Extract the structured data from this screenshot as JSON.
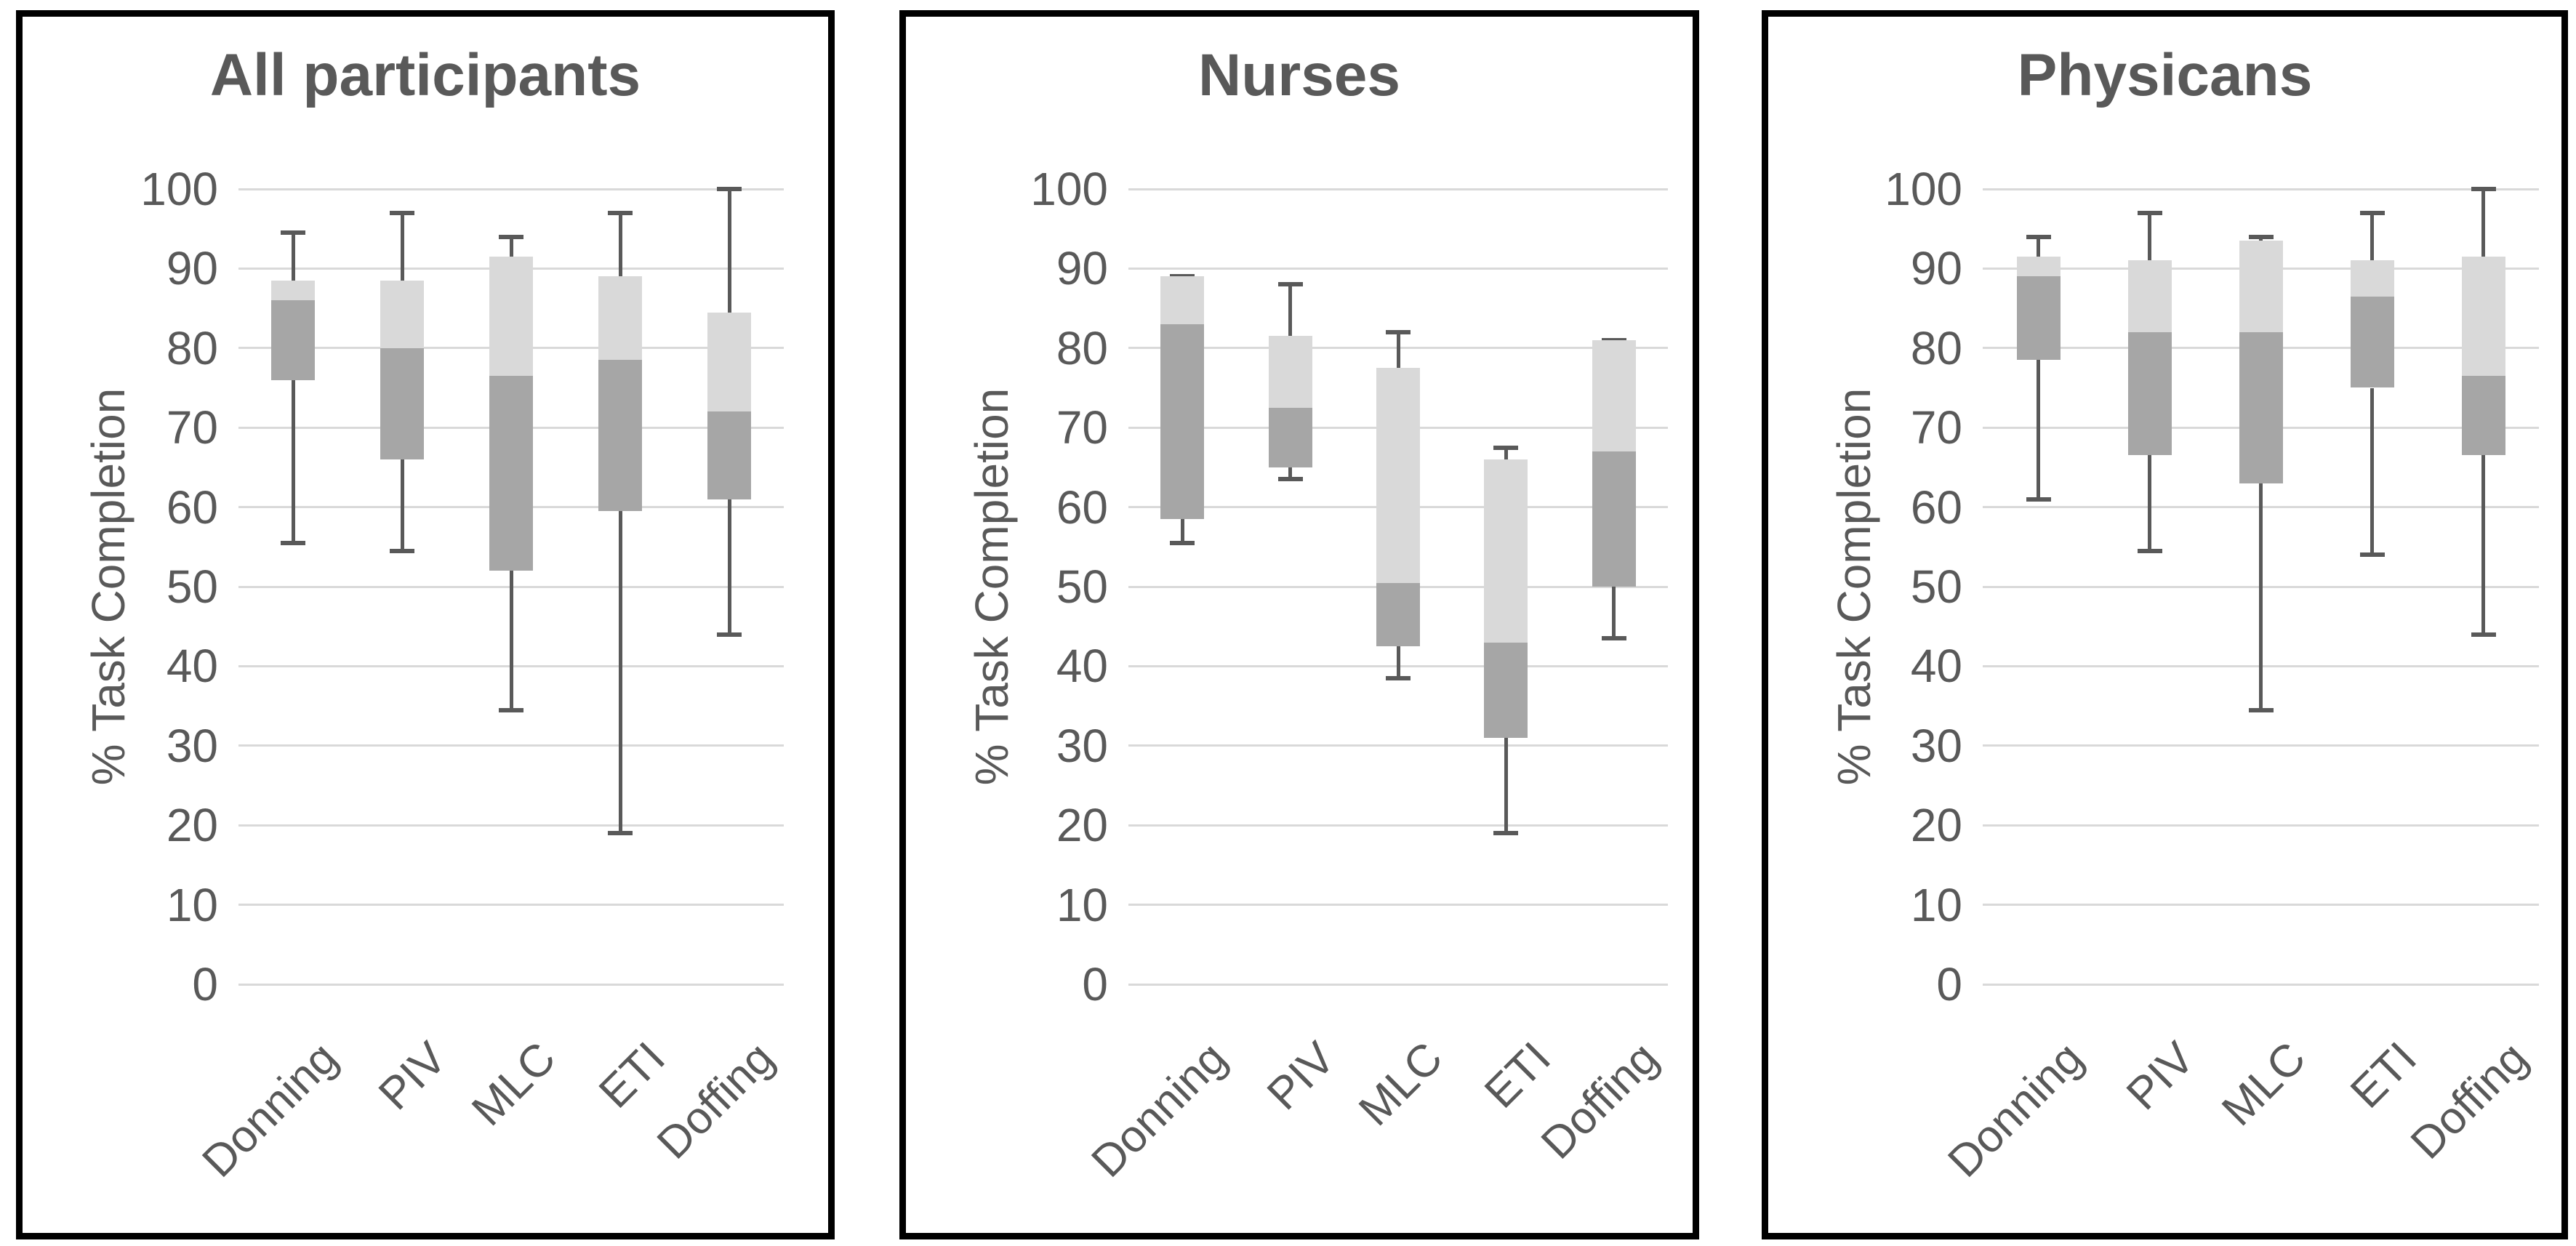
{
  "colors": {
    "background": "#ffffff",
    "panel_border": "#000000",
    "text": "#595959",
    "gridline": "#d9d9d9",
    "box_upper_fill": "#d9d9d9",
    "box_lower_fill": "#a6a6a6",
    "whisker": "#595959"
  },
  "y_axis": {
    "title": "% Task Completion",
    "min": 0,
    "max": 100,
    "step": 10,
    "ticks": [
      "0",
      "10",
      "20",
      "30",
      "40",
      "50",
      "60",
      "70",
      "80",
      "90",
      "100"
    ]
  },
  "categories": [
    "Donning",
    "PIV",
    "MLC",
    "ETI",
    "Doffing"
  ],
  "chart_data": [
    {
      "type": "box",
      "title": "All participants",
      "ylabel": "% Task Completion",
      "ylim": [
        0,
        100
      ],
      "ytick_step": 10,
      "grid": true,
      "categories": [
        "Donning",
        "PIV",
        "MLC",
        "ETI",
        "Doffing"
      ],
      "series": [
        {
          "category": "Donning",
          "whisker_low": 55.5,
          "q1": 76,
          "median": 86,
          "q3": 88.5,
          "whisker_high": 94.5
        },
        {
          "category": "PIV",
          "whisker_low": 54.5,
          "q1": 66,
          "median": 80,
          "q3": 88.5,
          "whisker_high": 97
        },
        {
          "category": "MLC",
          "whisker_low": 34.5,
          "q1": 52,
          "median": 76.5,
          "q3": 91.5,
          "whisker_high": 94
        },
        {
          "category": "ETI",
          "whisker_low": 19,
          "q1": 59.5,
          "median": 78.5,
          "q3": 89,
          "whisker_high": 97
        },
        {
          "category": "Doffing",
          "whisker_low": 44,
          "q1": 61,
          "median": 72,
          "q3": 84.5,
          "whisker_high": 100
        }
      ]
    },
    {
      "type": "box",
      "title": "Nurses",
      "ylabel": "% Task Completion",
      "ylim": [
        0,
        100
      ],
      "ytick_step": 10,
      "grid": true,
      "categories": [
        "Donning",
        "PIV",
        "MLC",
        "ETI",
        "Doffing"
      ],
      "series": [
        {
          "category": "Donning",
          "whisker_low": 55.5,
          "q1": 58.5,
          "median": 83,
          "q3": 89,
          "whisker_high": 89
        },
        {
          "category": "PIV",
          "whisker_low": 63.5,
          "q1": 65,
          "median": 72.5,
          "q3": 81.5,
          "whisker_high": 88
        },
        {
          "category": "MLC",
          "whisker_low": 38.5,
          "q1": 42.5,
          "median": 50.5,
          "q3": 77.5,
          "whisker_high": 82
        },
        {
          "category": "ETI",
          "whisker_low": 19,
          "q1": 31,
          "median": 43,
          "q3": 66,
          "whisker_high": 67.5
        },
        {
          "category": "Doffing",
          "whisker_low": 43.5,
          "q1": 50,
          "median": 67,
          "q3": 81,
          "whisker_high": 81
        }
      ]
    },
    {
      "type": "box",
      "title": "Physicans",
      "ylabel": "% Task Completion",
      "ylim": [
        0,
        100
      ],
      "ytick_step": 10,
      "grid": true,
      "categories": [
        "Donning",
        "PIV",
        "MLC",
        "ETI",
        "Doffing"
      ],
      "series": [
        {
          "category": "Donning",
          "whisker_low": 61,
          "q1": 78.5,
          "median": 89,
          "q3": 91.5,
          "whisker_high": 94
        },
        {
          "category": "PIV",
          "whisker_low": 54.5,
          "q1": 66.5,
          "median": 82,
          "q3": 91,
          "whisker_high": 97
        },
        {
          "category": "MLC",
          "whisker_low": 34.5,
          "q1": 63,
          "median": 82,
          "q3": 93.5,
          "whisker_high": 94
        },
        {
          "category": "ETI",
          "whisker_low": 54,
          "q1": 75,
          "median": 86.5,
          "q3": 91,
          "whisker_high": 97
        },
        {
          "category": "Doffing",
          "whisker_low": 44,
          "q1": 66.5,
          "median": 76.5,
          "q3": 91.5,
          "whisker_high": 100
        }
      ]
    }
  ]
}
